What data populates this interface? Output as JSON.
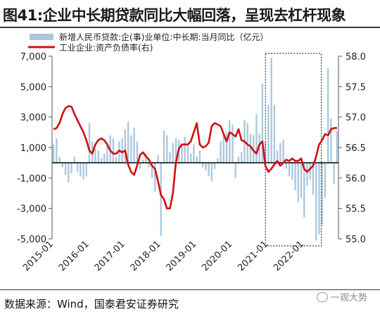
{
  "chart_data": {
    "type": "bar+line",
    "title": "图41:企业中长期贷款同比大幅回落，呈现去杠杆现象",
    "source": "数据来源：Wind，国泰君安证券研究",
    "watermark": "一观大势",
    "legend": {
      "bar_name": "新增人民币贷款:企(事)业单位:中长期:当月同比（亿元）",
      "line_name": "工业企业:资产负债率(右)",
      "placement": "top"
    },
    "left_axis": {
      "min": -5000,
      "max": 7000,
      "ticks": [
        -5000,
        -3000,
        -1000,
        1000,
        3000,
        5000,
        7000
      ],
      "tick_labels": [
        "-5,000",
        "-3,000",
        "-1,000",
        "1,000",
        "3,000",
        "5,000",
        "7,000"
      ]
    },
    "right_axis": {
      "min": 55.0,
      "max": 58.0,
      "ticks": [
        55.0,
        55.5,
        56.0,
        56.5,
        57.0,
        57.5,
        58.0
      ],
      "tick_labels": [
        "55.0",
        "55.5",
        "56.0",
        "56.5",
        "57.0",
        "57.5",
        "58.0"
      ]
    },
    "x_axis": {
      "labels": [
        "2015-01",
        "2016-01",
        "2017-01",
        "2018-01",
        "2019-01",
        "2020-01",
        "2021-01",
        "2022-01"
      ]
    },
    "highlight_box": {
      "from": "2021-01",
      "to": "2022-06"
    },
    "colors": {
      "bar": "#a9c7de",
      "line": "#d10f10",
      "box": "#333333"
    },
    "series": [
      {
        "name": "新增人民币贷款:企(事)业单位:中长期:当月同比（亿元）",
        "type": "bar",
        "axis": "left",
        "start": "2015-01",
        "values": [
          1200,
          1600,
          400,
          -300,
          -800,
          -1300,
          -700,
          400,
          -600,
          -900,
          -1100,
          -900,
          2600,
          1400,
          900,
          800,
          300,
          600,
          1300,
          1800,
          1600,
          400,
          1400,
          1600,
          2200,
          2700,
          1800,
          2300,
          1400,
          -400,
          200,
          600,
          -300,
          -1000,
          -1900,
          500,
          -4800,
          2100,
          1800,
          700,
          1300,
          1600,
          1500,
          1100,
          1700,
          1200,
          600,
          1200,
          400,
          800,
          -300,
          -500,
          -900,
          -1200,
          -400,
          300,
          1400,
          1900,
          2000,
          2800,
          2500,
          -1000,
          400,
          700,
          2800,
          2600,
          1900,
          1800,
          3200,
          1900,
          5200,
          1400,
          3800,
          6900,
          3800,
          800,
          1300,
          1500,
          -400,
          -900,
          -1100,
          -1800,
          -2600,
          -2300,
          -3600,
          -1500,
          -1100,
          -2100,
          -5100,
          -4700,
          -4100,
          -2300,
          6200,
          2900,
          -1400,
          2100
        ]
      },
      {
        "name": "工业企业:资产负债率(右)",
        "type": "line",
        "axis": "right",
        "start": "2015-01",
        "values": [
          56.8,
          56.82,
          56.9,
          57.05,
          57.15,
          57.18,
          57.17,
          57.05,
          56.95,
          56.85,
          56.75,
          56.62,
          56.45,
          56.4,
          56.55,
          56.62,
          56.65,
          56.62,
          56.55,
          56.45,
          56.4,
          56.4,
          56.45,
          56.42,
          56.45,
          56.22,
          56.1,
          56.05,
          56.2,
          56.38,
          56.42,
          56.35,
          56.3,
          56.2,
          56.15,
          55.95,
          55.72,
          55.65,
          55.5,
          55.5,
          55.75,
          56.25,
          56.48,
          56.55,
          56.55,
          56.55,
          56.6,
          56.75,
          56.9,
          56.55,
          56.5,
          56.52,
          56.58,
          56.85,
          56.9,
          56.88,
          56.85,
          56.72,
          56.6,
          56.75,
          56.72,
          56.68,
          56.8,
          56.62,
          56.6,
          56.55,
          56.52,
          56.45,
          56.4,
          56.55,
          56.6,
          56.2,
          56.1,
          56.15,
          56.22,
          56.28,
          56.2,
          56.25,
          56.3,
          56.28,
          56.32,
          56.28,
          56.28,
          56.32,
          56.15,
          56.1,
          56.15,
          56.2,
          56.35,
          56.55,
          56.62,
          56.72,
          56.7,
          56.8,
          56.82,
          56.82
        ]
      }
    ]
  }
}
